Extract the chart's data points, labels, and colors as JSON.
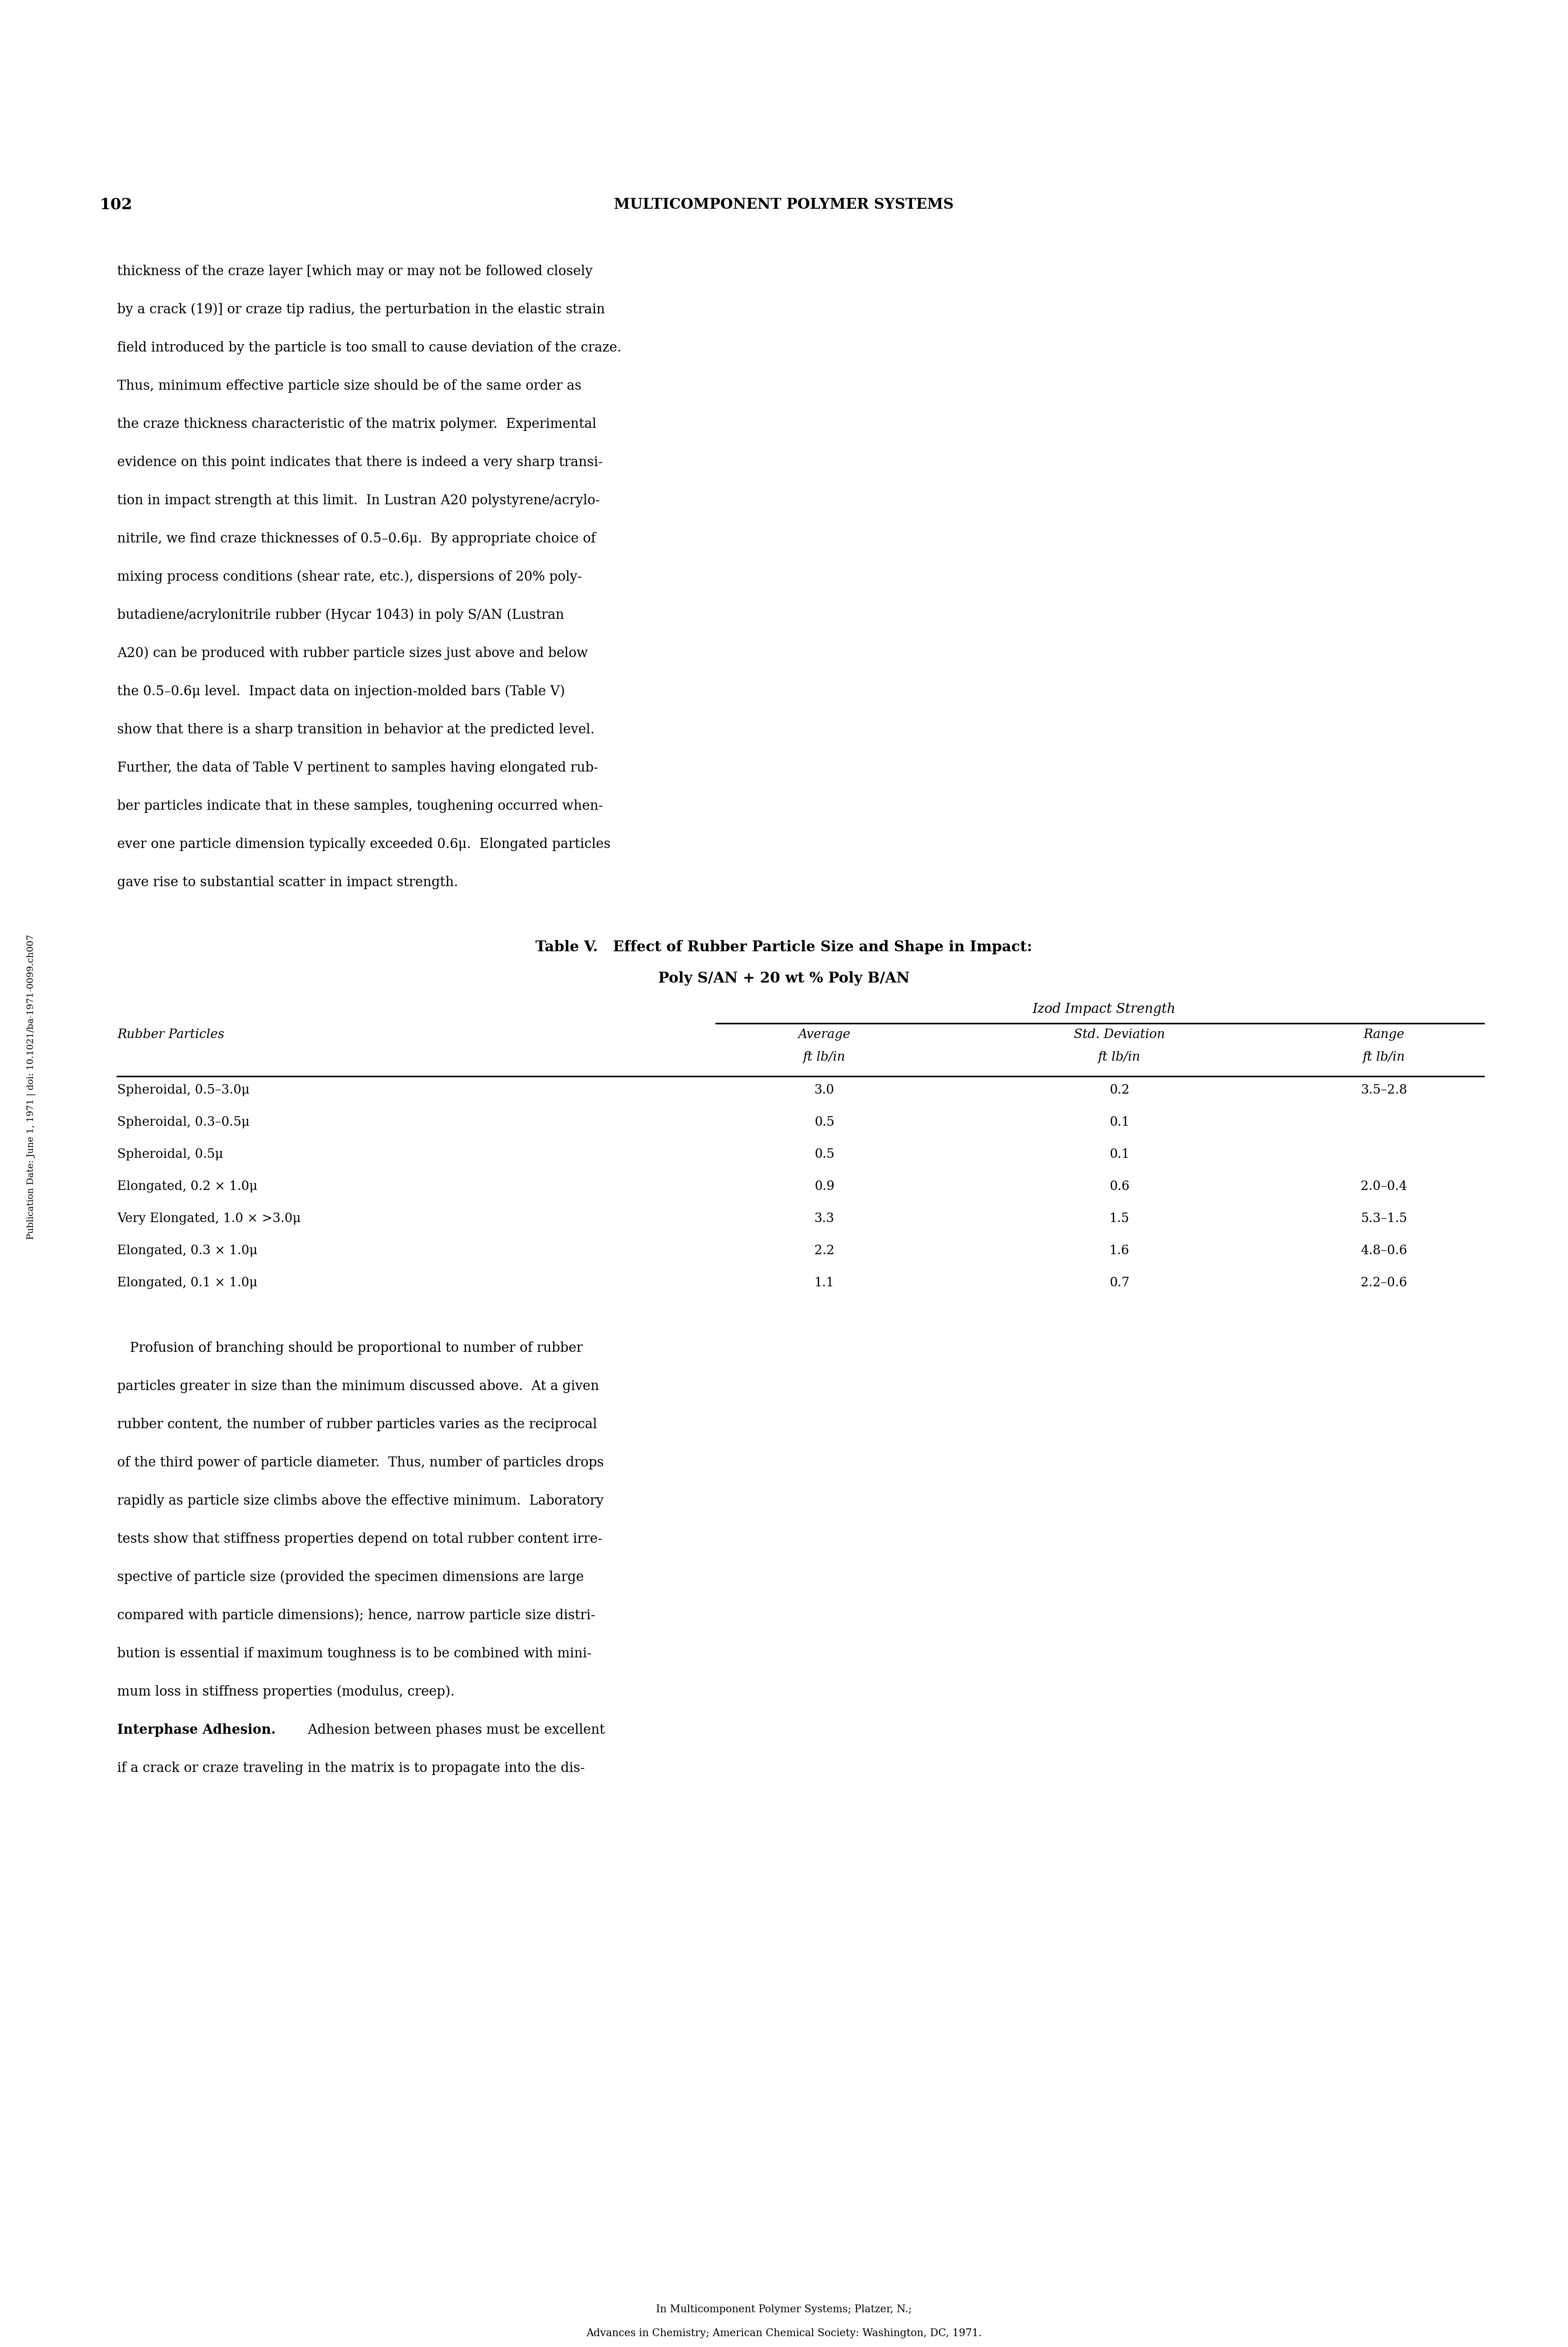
{
  "page_number": "102",
  "header": "MULTICOMPONENT POLYMER SYSTEMS",
  "sidebar_text": "Publication Date: June 1, 1971 | doi: 10.1021/ba-1971-0099.ch007",
  "paragraph1_lines": [
    "thickness of the craze layer [which may or may not be followed closely",
    "by a crack (19)] or craze tip radius, the perturbation in the elastic strain",
    "field introduced by the particle is too small to cause deviation of the craze.",
    "Thus, minimum effective particle size should be of the same order as",
    "the craze thickness characteristic of the matrix polymer.  Experimental",
    "evidence on this point indicates that there is indeed a very sharp transi-",
    "tion in impact strength at this limit.  In Lustran A20 polystyrene/acrylo-",
    "nitrile, we find craze thicknesses of 0.5–0.6μ.  By appropriate choice of",
    "mixing process conditions (shear rate, etc.), dispersions of 20% poly-",
    "butadiene/acrylonitrile rubber (Hycar 1043) in poly S/AN (Lustran",
    "A20) can be produced with rubber particle sizes just above and below",
    "the 0.5–0.6μ level.  Impact data on injection-molded bars (Table V)",
    "show that there is a sharp transition in behavior at the predicted level.",
    "Further, the data of Table V pertinent to samples having elongated rub-",
    "ber particles indicate that in these samples, toughening occurred when-",
    "ever one particle dimension typically exceeded 0.6μ.  Elongated particles",
    "gave rise to substantial scatter in impact strength."
  ],
  "table_title_line1": "Table V.   Effect of Rubber Particle Size and Shape in Impact:",
  "table_title_line2": "Poly S/AN + 20 wt % Poly B/AN",
  "col_header_group": "Izod Impact Strength",
  "rows": [
    [
      "Spheroidal, 0.5–3.0μ",
      "3.0",
      "0.2",
      "3.5–2.8"
    ],
    [
      "Spheroidal, 0.3–0.5μ",
      "0.5",
      "0.1",
      ""
    ],
    [
      "Spheroidal, 0.5μ",
      "0.5",
      "0.1",
      ""
    ],
    [
      "Elongated, 0.2 × 1.0μ",
      "0.9",
      "0.6",
      "2.0–0.4"
    ],
    [
      "Very Elongated, 1.0 × >3.0μ",
      "3.3",
      "1.5",
      "5.3–1.5"
    ],
    [
      "Elongated, 0.3 × 1.0μ",
      "2.2",
      "1.6",
      "4.8–0.6"
    ],
    [
      "Elongated, 0.1 × 1.0μ",
      "1.1",
      "0.7",
      "2.2–0.6"
    ]
  ],
  "paragraph2_lines": [
    "   Profusion of branching should be proportional to number of rubber",
    "particles greater in size than the minimum discussed above.  At a given",
    "rubber content, the number of rubber particles varies as the reciprocal",
    "of the third power of particle diameter.  Thus, number of particles drops",
    "rapidly as particle size climbs above the effective minimum.  Laboratory",
    "tests show that stiffness properties depend on total rubber content irre-",
    "spective of particle size (provided the specimen dimensions are large",
    "compared with particle dimensions); hence, narrow particle size distri-",
    "bution is essential if maximum toughness is to be combined with mini-",
    "mum loss in stiffness properties (modulus, creep)."
  ],
  "paragraph3_label": "Interphase Adhesion.",
  "paragraph3_rest": " Adhesion between phases must be excellent",
  "paragraph3_line2": "if a crack or craze traveling in the matrix is to propagate into the dis-",
  "footer_line1": "In Multicomponent Polymer Systems; Platzer, N.;",
  "footer_line2": "Advances in Chemistry; American Chemical Society: Washington, DC, 1971.",
  "bg_color": "#ffffff",
  "text_color": "#000000",
  "font_size_body": 22,
  "font_size_table_title": 24,
  "font_size_table_body": 21,
  "font_size_footer": 17,
  "font_size_header": 24,
  "font_size_pagenum": 26
}
